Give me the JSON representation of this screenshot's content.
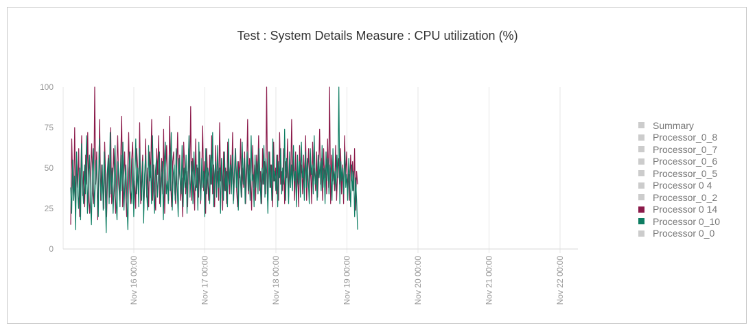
{
  "title": "Test : System Details Measure : CPU utilization (%)",
  "chart_data": {
    "type": "line",
    "title": "Test : System Details Measure : CPU utilization (%)",
    "xlabel": "",
    "ylabel": "",
    "ylim": [
      0,
      100
    ],
    "yticks": [
      "0",
      "25",
      "50",
      "75",
      "100"
    ],
    "xticks": [
      "Nov 16 00:00",
      "Nov 17 00:00",
      "Nov 18 00:00",
      "Nov 19 00:00",
      "Nov 20 00:00",
      "Nov 21 00:00",
      "Nov 22 00:00"
    ],
    "xrange": [
      "Nov 15 03:00",
      "Nov 22 04:00"
    ],
    "data_range": [
      "Nov 15 04:00",
      "Nov 19 04:00"
    ],
    "grid": "vertical",
    "legend_position": "right",
    "legend": [
      {
        "name": "Summary",
        "color": "#cccccc",
        "visible": false
      },
      {
        "name": "Processor_0_8",
        "color": "#cccccc",
        "visible": false
      },
      {
        "name": "Processor_0_7",
        "color": "#cccccc",
        "visible": false
      },
      {
        "name": "Processor_0_6",
        "color": "#cccccc",
        "visible": false
      },
      {
        "name": "Processor_0_5",
        "color": "#cccccc",
        "visible": false
      },
      {
        "name": "Processor 0 4",
        "color": "#cccccc",
        "visible": false
      },
      {
        "name": "Processor_0_2",
        "color": "#cccccc",
        "visible": false
      },
      {
        "name": "Processor 0 14",
        "color": "#8b1a4a",
        "visible": true
      },
      {
        "name": "Processor 0_10",
        "color": "#0e7d62",
        "visible": true
      },
      {
        "name": "Processor 0_0",
        "color": "#cccccc",
        "visible": false
      }
    ],
    "series": [
      {
        "name": "Processor 0 14",
        "color": "#8b1a4a",
        "values": [
          15,
          68,
          42,
          30,
          75,
          25,
          55,
          38,
          62,
          20,
          45,
          70,
          33,
          48,
          26,
          58,
          40,
          72,
          30,
          22,
          50,
          65,
          35,
          28,
          100,
          40,
          60,
          18,
          45,
          80,
          30,
          52,
          38,
          25,
          66,
          42,
          20,
          48,
          58,
          32,
          75,
          28,
          44,
          62,
          36,
          22,
          50,
          70,
          40,
          30,
          55,
          82,
          26,
          45,
          60,
          34,
          20,
          48,
          72,
          38,
          28,
          55,
          66,
          30,
          42,
          25,
          62,
          50,
          35,
          78,
          28,
          45,
          58,
          22,
          40,
          68,
          32,
          50,
          26,
          60,
          44,
          80,
          30,
          52,
          36,
          24,
          62,
          46,
          70,
          28,
          40,
          56,
          34,
          74,
          22,
          48,
          64,
          38,
          30,
          82,
          42,
          26,
          54,
          60,
          36,
          28,
          46,
          72,
          40,
          58,
          30,
          44,
          20,
          66,
          52,
          34,
          48,
          26,
          62,
          40,
          88,
          30,
          56,
          42,
          24,
          68,
          38,
          50,
          32,
          60,
          28,
          46,
          76,
          36,
          54,
          22,
          62,
          44,
          30,
          58,
          40,
          70,
          34,
          52,
          26,
          64,
          38,
          48,
          30,
          78,
          42,
          56,
          24,
          60,
          36,
          50,
          28,
          66,
          44,
          34,
          58,
          40,
          72,
          30,
          48,
          62,
          36,
          26,
          54,
          44,
          68,
          32,
          50,
          38,
          60,
          28,
          46,
          80,
          34,
          56,
          42,
          24,
          64,
          38,
          52,
          30,
          58,
          44,
          70,
          36,
          48,
          28,
          62,
          40,
          54,
          34,
          100,
          30,
          46,
          60,
          38,
          52,
          26,
          66,
          42,
          50,
          34,
          58,
          30,
          72,
          40,
          48,
          36,
          62,
          28,
          54,
          44,
          68,
          32,
          50,
          38,
          80,
          42,
          56,
          30,
          60,
          36,
          48,
          26,
          64,
          44,
          52,
          34,
          58,
          40,
          70,
          30,
          46,
          62,
          38,
          54,
          28,
          66,
          42,
          50,
          36,
          60,
          32,
          48,
          74,
          40,
          56,
          30,
          62,
          44,
          52,
          34,
          68,
          38,
          100,
          28,
          58,
          42,
          50,
          36,
          64,
          30,
          48,
          56,
          40,
          62,
          34,
          52,
          28,
          70,
          44,
          60,
          38,
          46,
          30,
          58,
          42,
          54,
          36,
          62,
          24,
          48,
          40
        ]
      },
      {
        "name": "Processor 0_10",
        "color": "#0e7d62",
        "values": [
          38,
          22,
          55,
          30,
          45,
          12,
          60,
          35,
          25,
          50,
          18,
          65,
          40,
          28,
          52,
          34,
          70,
          22,
          44,
          58,
          30,
          15,
          48,
          62,
          26,
          40,
          55,
          33,
          20,
          68,
          42,
          30,
          52,
          24,
          60,
          38,
          10,
          46,
          56,
          28,
          72,
          34,
          50,
          22,
          40,
          64,
          30,
          18,
          54,
          44,
          26,
          58,
          36,
          66,
          24,
          42,
          52,
          30,
          12,
          48,
          60,
          38,
          28,
          56,
          20,
          44,
          68,
          34,
          50,
          26,
          62,
          40,
          30,
          54,
          16,
          46,
          58,
          36,
          24,
          64,
          42,
          52,
          28,
          70,
          38,
          22,
          48,
          56,
          32,
          44,
          60,
          26,
          40,
          54,
          18,
          50,
          66,
          34,
          42,
          28,
          58,
          36,
          72,
          24,
          46,
          52,
          30,
          62,
          40,
          20,
          56,
          44,
          34,
          64,
          26,
          50,
          38,
          58,
          22,
          48,
          70,
          32,
          44,
          54,
          28,
          60,
          40,
          36,
          52,
          24,
          66,
          42,
          30,
          56,
          38,
          48,
          20,
          62,
          34,
          50,
          44,
          28,
          58,
          40,
          72,
          26,
          46,
          54,
          32,
          64,
          38,
          50,
          22,
          56,
          42,
          30,
          60,
          36,
          48,
          26,
          68,
          40,
          52,
          34,
          58,
          28,
          46,
          62,
          38,
          54,
          24,
          50,
          44,
          32,
          66,
          40,
          56,
          28,
          48,
          60,
          36,
          52,
          30,
          70,
          42,
          46,
          26,
          58,
          38,
          54,
          34,
          62,
          44,
          28,
          50,
          40,
          64,
          32,
          56,
          46,
          22,
          60,
          38,
          52,
          30,
          68,
          42,
          48,
          36,
          58,
          26,
          54,
          44,
          62,
          34,
          50,
          40,
          74,
          30,
          56,
          46,
          28,
          60,
          38,
          52,
          36,
          64,
          42,
          48,
          26,
          58,
          40,
          54,
          32,
          66,
          44,
          50,
          30,
          60,
          38,
          56,
          42,
          28,
          62,
          46,
          52,
          34,
          70,
          40,
          48,
          30,
          58,
          44,
          54,
          36,
          64,
          38,
          50,
          28,
          60,
          42,
          56,
          34,
          52,
          46,
          30,
          62,
          40,
          48,
          36,
          58,
          44,
          100,
          28,
          54,
          42,
          50,
          34,
          60,
          38,
          46,
          30,
          56,
          42,
          26,
          52,
          36,
          48,
          20,
          44,
          30,
          12
        ]
      }
    ]
  }
}
